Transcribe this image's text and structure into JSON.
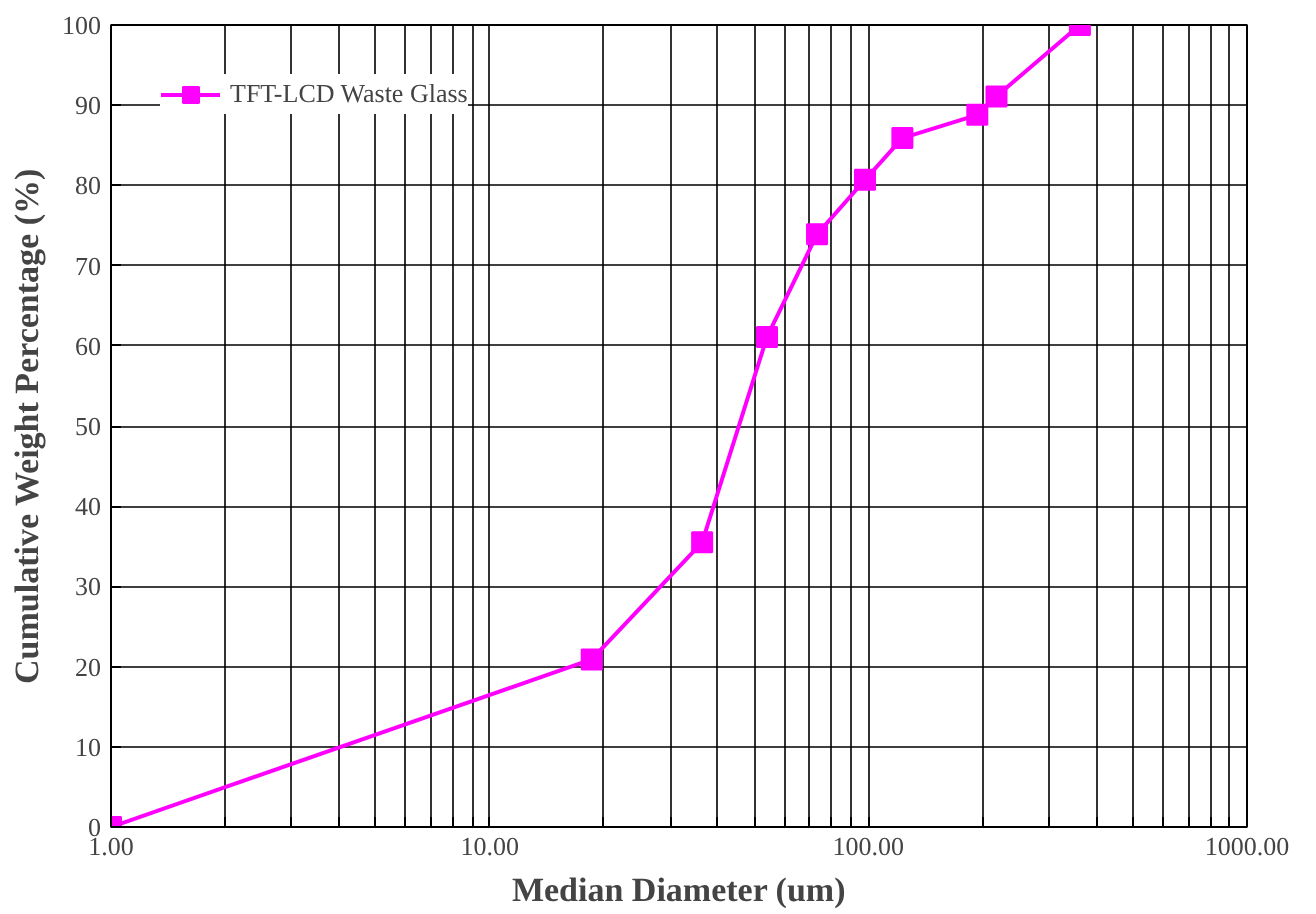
{
  "chart_data": {
    "type": "line",
    "xlabel": "Median Diameter (um)",
    "ylabel": "Cumulative Weight Percentage (%)",
    "log": "x",
    "xlim": [
      1,
      1000
    ],
    "ylim": [
      0,
      100
    ],
    "xticks": [
      {
        "value": 1,
        "label": "1.00"
      },
      {
        "value": 2,
        "label": null
      },
      {
        "value": 3,
        "label": null
      },
      {
        "value": 4,
        "label": null
      },
      {
        "value": 5,
        "label": null
      },
      {
        "value": 6,
        "label": null
      },
      {
        "value": 7,
        "label": null
      },
      {
        "value": 8,
        "label": null
      },
      {
        "value": 9,
        "label": null
      },
      {
        "value": 10,
        "label": "10.00"
      },
      {
        "value": 20,
        "label": null
      },
      {
        "value": 30,
        "label": null
      },
      {
        "value": 40,
        "label": null
      },
      {
        "value": 50,
        "label": null
      },
      {
        "value": 60,
        "label": null
      },
      {
        "value": 70,
        "label": null
      },
      {
        "value": 80,
        "label": null
      },
      {
        "value": 90,
        "label": null
      },
      {
        "value": 100,
        "label": "100.00"
      },
      {
        "value": 200,
        "label": null
      },
      {
        "value": 300,
        "label": null
      },
      {
        "value": 400,
        "label": null
      },
      {
        "value": 500,
        "label": null
      },
      {
        "value": 600,
        "label": null
      },
      {
        "value": 700,
        "label": null
      },
      {
        "value": 800,
        "label": null
      },
      {
        "value": 900,
        "label": null
      },
      {
        "value": 1000,
        "label": "1000.00"
      }
    ],
    "yticks": [
      0,
      10,
      20,
      30,
      40,
      50,
      60,
      70,
      80,
      90,
      100
    ],
    "grid": true,
    "legend": "top left",
    "marker": "square",
    "line_style": "solid",
    "series": [
      {
        "name": "TFT-LCD Waste Glass",
        "color": "#ff00ff",
        "x": [
          1,
          18.6,
          36.4,
          54,
          73.2,
          98,
          123,
          194,
          218,
          362
        ],
        "values": [
          0,
          20.9,
          35.5,
          61.1,
          73.9,
          80.7,
          85.9,
          88.8,
          91.1,
          100
        ]
      }
    ]
  }
}
